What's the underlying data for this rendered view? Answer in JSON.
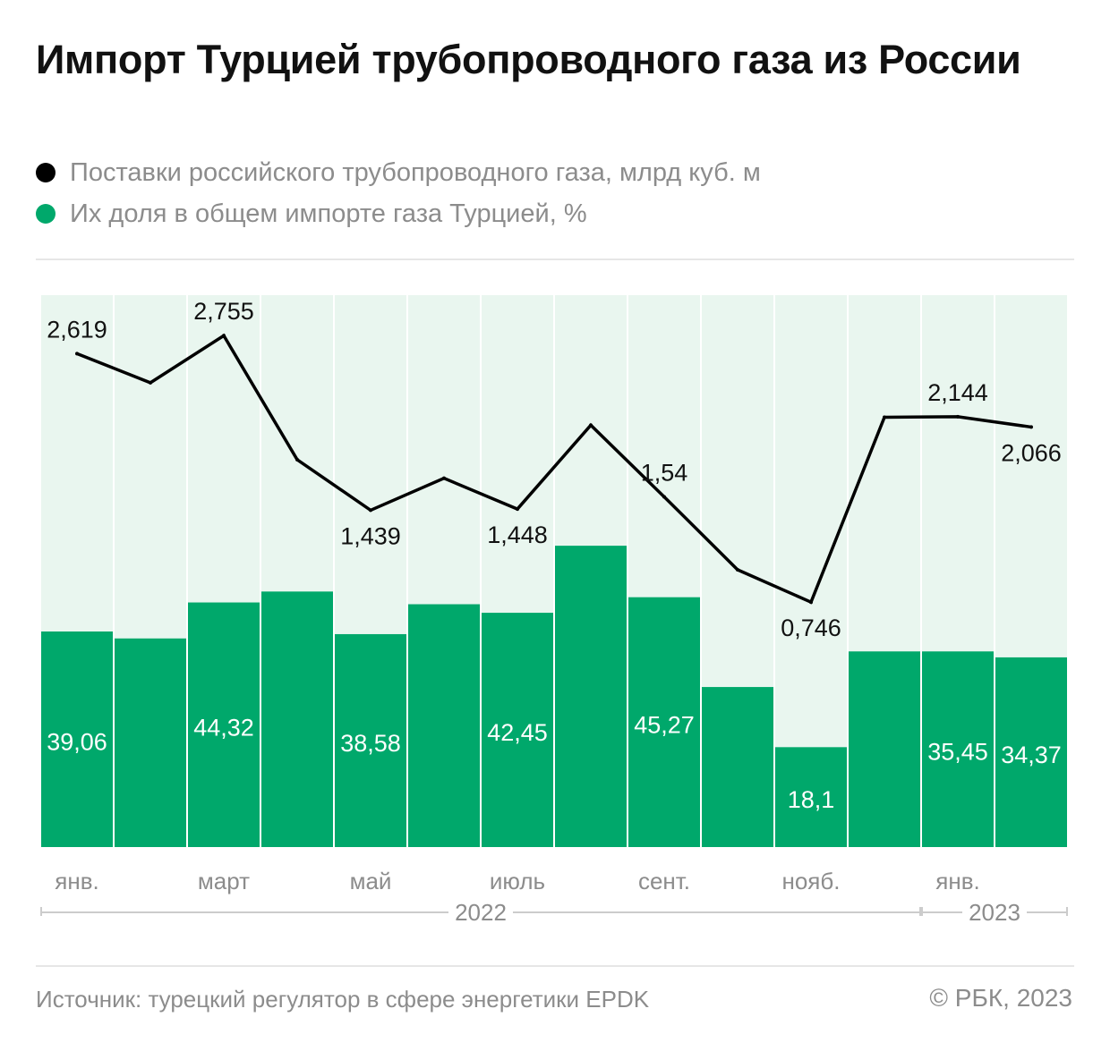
{
  "title": "Импорт Турцией трубопроводного газа из России",
  "legend": [
    {
      "label": "Поставки российского трубопроводного газа, млрд куб. м",
      "color": "#000000"
    },
    {
      "label": "Их доля в общем импорте газа Турцией, %",
      "color": "#00a86b"
    }
  ],
  "colors": {
    "bar": "#00a86b",
    "band": "#e9f6ef",
    "line": "#000000",
    "bar_label": "#ffffff",
    "axis_text": "#8c8c8c"
  },
  "chart_data": {
    "type": "bar",
    "categories": [
      "янв. 2022",
      "февр. 2022",
      "март 2022",
      "апр. 2022",
      "май 2022",
      "июнь 2022",
      "июль 2022",
      "авг. 2022",
      "сент. 2022",
      "окт. 2022",
      "нояб. 2022",
      "дек. 2022",
      "янв. 2023",
      "февр. 2023"
    ],
    "tick_labels": [
      "янв.",
      "",
      "март",
      "",
      "май",
      "",
      "июль",
      "",
      "сент.",
      "",
      "нояб.",
      "",
      "янв.",
      ""
    ],
    "year_groups": [
      {
        "label": "2022",
        "from": 0,
        "to": 11
      },
      {
        "label": "2023",
        "from": 12,
        "to": 13
      }
    ],
    "series": [
      {
        "name": "Их доля в общем импорте газа Турцией, %",
        "type": "bar",
        "values": [
          39.06,
          37.8,
          44.32,
          46.3,
          38.58,
          44.0,
          42.45,
          54.6,
          45.27,
          29.0,
          18.1,
          35.45,
          35.45,
          34.37
        ],
        "labels": [
          "39,06",
          "",
          "44,32",
          "",
          "38,58",
          "",
          "42,45",
          "",
          "45,27",
          "",
          "18,1",
          "",
          "35,45",
          "34,37"
        ],
        "ylim": [
          0,
          100
        ]
      },
      {
        "name": "Поставки российского трубопроводного газа, млрд куб. м",
        "type": "line",
        "values": [
          2.619,
          2.4,
          2.755,
          1.82,
          1.439,
          1.68,
          1.448,
          2.08,
          1.54,
          0.99,
          0.746,
          2.14,
          2.144,
          2.066
        ],
        "labels": [
          "2,619",
          "",
          "2,755",
          "",
          "1,439",
          "",
          "1,448",
          "",
          "1,54",
          "",
          "0,746",
          "",
          "2,144",
          "2,066"
        ],
        "ylim": [
          -1.1,
          3.06
        ]
      }
    ],
    "grid": false,
    "legend_position": "top-left"
  },
  "footer": {
    "source": "Источник: турецкий регулятор в сфере энергетики EPDK",
    "copyright": "© РБК, 2023"
  }
}
